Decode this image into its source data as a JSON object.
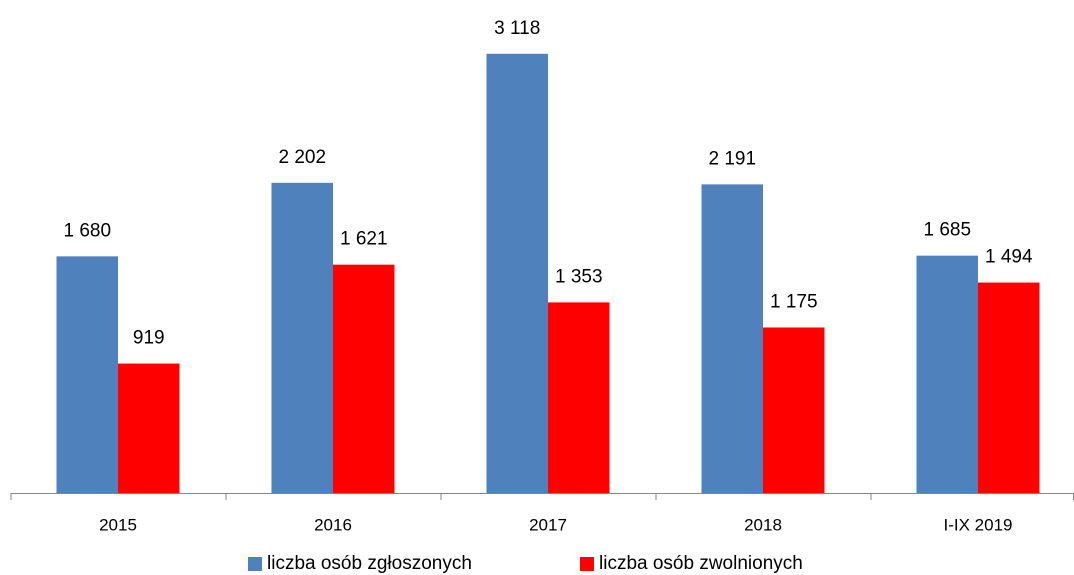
{
  "chart_data": {
    "type": "bar",
    "categories": [
      "2015",
      "2016",
      "2017",
      "2018",
      "I-IX 2019"
    ],
    "series": [
      {
        "name": "liczba osób zgłoszonych",
        "color": "#4f81bd",
        "values": [
          1680,
          2202,
          3118,
          2191,
          1685
        ],
        "value_labels": [
          "1 680",
          "2 202",
          "3 118",
          "2 191",
          "1 685"
        ]
      },
      {
        "name": "liczba osób zwolnionych",
        "color": "#ff0000",
        "values": [
          919,
          1621,
          1353,
          1175,
          1494
        ],
        "value_labels": [
          "919",
          "1 621",
          "1 353",
          "1 175",
          "1 494"
        ]
      }
    ],
    "ylim": [
      0,
      3500
    ]
  }
}
